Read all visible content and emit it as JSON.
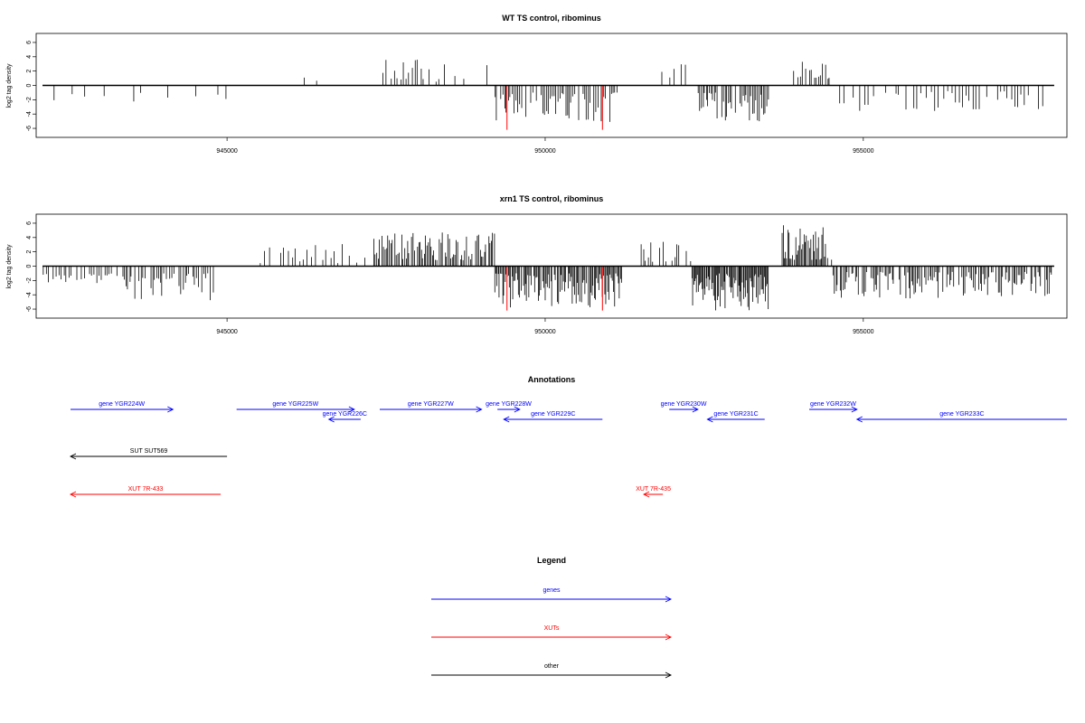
{
  "chart_data": [
    {
      "type": "bar",
      "title": "WT TS control, ribominus",
      "ylabel": "log2 tag density",
      "xlim": [
        942000,
        958200
      ],
      "ylim": [
        -6.5,
        6.5
      ],
      "x_ticks": [
        945000,
        950000,
        955000
      ],
      "x_tick_labels": [
        "945000",
        "950000",
        "955000"
      ],
      "y_ticks": [
        -6,
        -4,
        -2,
        0,
        2,
        4,
        6
      ],
      "y_tick_labels": [
        "-6",
        "-4",
        "-2",
        "0",
        "2",
        "4",
        "6"
      ],
      "series_colors": {
        "default": "#000000",
        "highlight": "#ff0000"
      },
      "highlights": [
        {
          "x": 949400,
          "y": -6.2
        },
        {
          "x": 950900,
          "y": -6.2
        }
      ],
      "regions": [
        {
          "x_start": 942100,
          "x_end": 945000,
          "sign": -1,
          "min": 1.0,
          "max": 2.6,
          "step": 150,
          "keep": 0.6
        },
        {
          "x_start": 946200,
          "x_end": 946800,
          "sign": 1,
          "min": 0.5,
          "max": 1.2,
          "step": 200,
          "keep": 0.9
        },
        {
          "x_start": 947400,
          "x_end": 948100,
          "sign": 1,
          "min": 0.8,
          "max": 3.6,
          "step": 45,
          "keep": 0.75
        },
        {
          "x_start": 948100,
          "x_end": 949200,
          "sign": 1,
          "min": 0.5,
          "max": 3.2,
          "step": 75,
          "keep": 0.55
        },
        {
          "x_start": 949200,
          "x_end": 951200,
          "sign": -1,
          "min": 1.0,
          "max": 5.2,
          "step": 30,
          "keep": 0.85
        },
        {
          "x_start": 951800,
          "x_end": 952200,
          "sign": 1,
          "min": 0.8,
          "max": 3.0,
          "step": 100,
          "keep": 0.6
        },
        {
          "x_start": 952400,
          "x_end": 953500,
          "sign": -1,
          "min": 1.0,
          "max": 5.0,
          "step": 25,
          "keep": 0.9
        },
        {
          "x_start": 953900,
          "x_end": 954500,
          "sign": 1,
          "min": 0.8,
          "max": 4.5,
          "step": 35,
          "keep": 0.8
        },
        {
          "x_start": 954500,
          "x_end": 958000,
          "sign": -1,
          "min": 0.8,
          "max": 3.6,
          "step": 55,
          "keep": 0.65
        }
      ]
    },
    {
      "type": "bar",
      "title": "xrn1 TS control, ribominus",
      "ylabel": "log2 tag density",
      "xlim": [
        942000,
        958200
      ],
      "ylim": [
        -6.5,
        6.5
      ],
      "x_ticks": [
        945000,
        950000,
        955000
      ],
      "x_tick_labels": [
        "945000",
        "950000",
        "955000"
      ],
      "y_ticks": [
        -6,
        -4,
        -2,
        0,
        2,
        4,
        6
      ],
      "y_tick_labels": [
        "-6",
        "-4",
        "-2",
        "0",
        "2",
        "4",
        "6"
      ],
      "series_colors": {
        "default": "#000000",
        "highlight": "#ff0000"
      },
      "highlights": [
        {
          "x": 949400,
          "y": -6.2
        },
        {
          "x": 950900,
          "y": -6.2
        }
      ],
      "regions": [
        {
          "x_start": 942100,
          "x_end": 943400,
          "sign": -1,
          "min": 1.0,
          "max": 3.0,
          "step": 40,
          "keep": 0.75
        },
        {
          "x_start": 943400,
          "x_end": 944800,
          "sign": -1,
          "min": 1.0,
          "max": 5.2,
          "step": 30,
          "keep": 0.8
        },
        {
          "x_start": 945400,
          "x_end": 947200,
          "sign": 1,
          "min": 0.4,
          "max": 3.4,
          "step": 60,
          "keep": 0.55
        },
        {
          "x_start": 947300,
          "x_end": 949200,
          "sign": 1,
          "min": 0.8,
          "max": 4.8,
          "step": 22,
          "keep": 0.85
        },
        {
          "x_start": 949200,
          "x_end": 951200,
          "sign": -1,
          "min": 1.0,
          "max": 5.8,
          "step": 18,
          "keep": 0.95
        },
        {
          "x_start": 951500,
          "x_end": 952300,
          "sign": 1,
          "min": 0.6,
          "max": 3.6,
          "step": 35,
          "keep": 0.7
        },
        {
          "x_start": 952300,
          "x_end": 953500,
          "sign": -1,
          "min": 1.0,
          "max": 6.2,
          "step": 15,
          "keep": 0.95
        },
        {
          "x_start": 953700,
          "x_end": 954500,
          "sign": 1,
          "min": 0.8,
          "max": 6.2,
          "step": 18,
          "keep": 0.9
        },
        {
          "x_start": 954500,
          "x_end": 958000,
          "sign": -1,
          "min": 0.8,
          "max": 4.5,
          "step": 22,
          "keep": 0.8
        }
      ]
    }
  ],
  "annotations": {
    "title": "Annotations",
    "genes": [
      {
        "label": "gene YGR224W",
        "x_start": 942300,
        "x_end": 944150,
        "strand": "+",
        "row": 0
      },
      {
        "label": "gene YGR225W",
        "x_start": 945150,
        "x_end": 947000,
        "strand": "+",
        "row": 0
      },
      {
        "label": "gene YGR226C",
        "x_start": 946600,
        "x_end": 947100,
        "strand": "-",
        "row": 1
      },
      {
        "label": "gene YGR227W",
        "x_start": 947400,
        "x_end": 949000,
        "strand": "+",
        "row": 0
      },
      {
        "label": "gene YGR228W",
        "x_start": 949250,
        "x_end": 949600,
        "strand": "+",
        "row": 0
      },
      {
        "label": "gene YGR229C",
        "x_start": 949350,
        "x_end": 950900,
        "strand": "-",
        "row": 1
      },
      {
        "label": "gene YGR230W",
        "x_start": 951950,
        "x_end": 952400,
        "strand": "+",
        "row": 0
      },
      {
        "label": "gene YGR231C",
        "x_start": 952550,
        "x_end": 953450,
        "strand": "-",
        "row": 1
      },
      {
        "label": "gene YGR232W",
        "x_start": 954150,
        "x_end": 954900,
        "strand": "+",
        "row": 0
      },
      {
        "label": "gene YGR233C",
        "x_start": 954900,
        "x_end": 958500,
        "strand": "-",
        "row": 1
      }
    ],
    "suts": [
      {
        "label": "SUT SUT569",
        "x_start": 942200,
        "x_end": 945000,
        "strand": "-"
      }
    ],
    "xuts": [
      {
        "label": "XUT 7R-433",
        "x_start": 942150,
        "x_end": 944900,
        "strand": "-"
      },
      {
        "label": "XUT 7R-435",
        "x_start": 951550,
        "x_end": 951850,
        "strand": "-"
      }
    ]
  },
  "legend": {
    "title": "Legend",
    "items": [
      {
        "label": "genes",
        "color": "#0000ff"
      },
      {
        "label": "XUTs",
        "color": "#ff0000"
      },
      {
        "label": "other",
        "color": "#000000"
      }
    ]
  }
}
